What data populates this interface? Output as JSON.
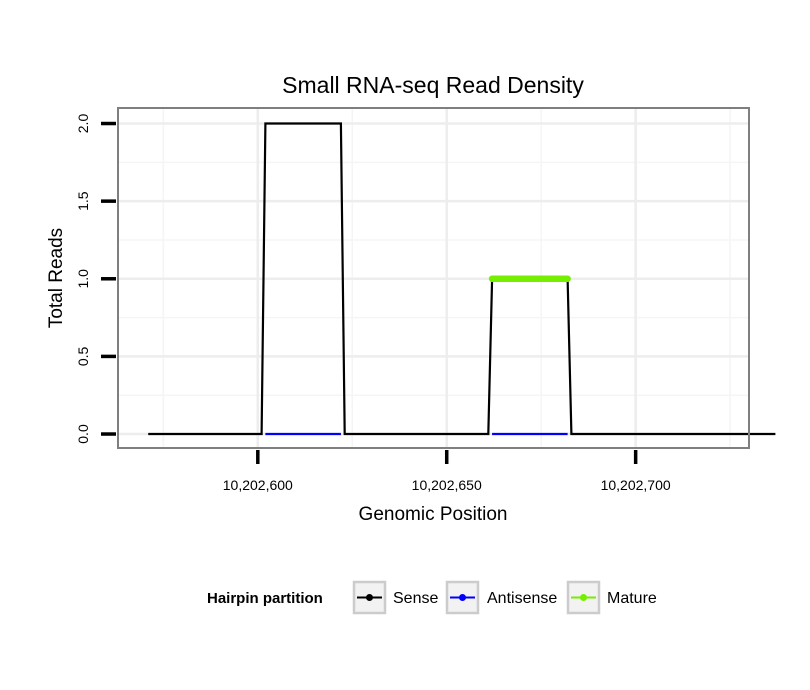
{
  "chart_data": {
    "type": "line",
    "title": "Small RNA-seq Read Density",
    "xlabel": "Genomic Position",
    "ylabel": "Total Reads",
    "xlim": [
      10202563,
      10202730
    ],
    "ylim": [
      -0.09,
      2.1
    ],
    "xticks": [
      10202600,
      10202650,
      10202700
    ],
    "xtick_labels": [
      "10,202,600",
      "10,202,650",
      "10,202,700"
    ],
    "xminor": [
      10202575,
      10202625,
      10202675,
      10202725
    ],
    "yticks": [
      0,
      0.5,
      1,
      1.5,
      2
    ],
    "ytick_labels": [
      "0.0",
      "0.5",
      "1.0",
      "1.5",
      "2.0"
    ],
    "yminor": [
      0.25,
      0.75,
      1.25,
      1.75
    ],
    "grid": true,
    "legend": {
      "title": "Hairpin partition",
      "position": "bottom",
      "entries": [
        {
          "label": "Sense",
          "color": "#000000"
        },
        {
          "label": "Antisense",
          "color": "#0000ff"
        },
        {
          "label": "Mature",
          "color": "#76ee00"
        }
      ]
    },
    "series": [
      {
        "name": "Sense",
        "color": "#000000",
        "x": [
          10202571,
          10202601,
          10202602,
          10202622,
          10202623,
          10202661,
          10202662,
          10202682,
          10202683,
          10202737
        ],
        "y": [
          0,
          0,
          2,
          2,
          0,
          0,
          1,
          1,
          0,
          0
        ]
      },
      {
        "name": "Antisense",
        "color": "#0000ff",
        "x": [
          10202602,
          10202622,
          10202661,
          10202682
        ],
        "y": [
          0,
          0,
          null,
          null
        ],
        "segments": [
          [
            10202602,
            10202622
          ],
          [
            10202662,
            10202682
          ]
        ]
      },
      {
        "name": "Mature",
        "color": "#76ee00",
        "x": [
          10202662,
          10202682
        ],
        "y": [
          1,
          1
        ]
      }
    ]
  }
}
